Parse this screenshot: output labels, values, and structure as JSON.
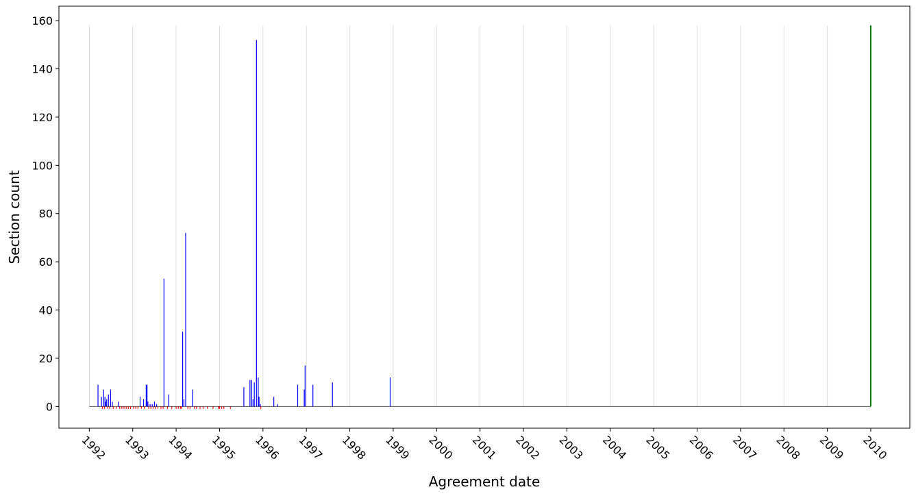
{
  "chart_data": {
    "type": "bar",
    "title": "",
    "xlabel": "Agreement date",
    "ylabel": "Section count",
    "ylim": [
      -9,
      166
    ],
    "yticks": [
      0,
      20,
      40,
      60,
      80,
      100,
      120,
      140,
      160
    ],
    "xlim": [
      1991.3,
      2010.9
    ],
    "xticks": [
      1992,
      1993,
      1994,
      1995,
      1996,
      1997,
      1998,
      1999,
      2000,
      2001,
      2002,
      2003,
      2004,
      2005,
      2006,
      2007,
      2008,
      2009,
      2010
    ],
    "xtick_labels": [
      "1992",
      "1993",
      "1994",
      "1995",
      "1996",
      "1997",
      "1998",
      "1999",
      "2000",
      "2001",
      "2002",
      "2003",
      "2004",
      "2005",
      "2006",
      "2007",
      "2008",
      "2009",
      "2010"
    ],
    "grid": "vertical",
    "baseline": [
      1992.0,
      2010.0
    ],
    "series": [
      {
        "color": "#0000ff",
        "x": [
          1992.2,
          1992.28,
          1992.33,
          1992.36,
          1992.38,
          1992.4,
          1992.44,
          1992.49,
          1992.53,
          1992.67,
          1993.17,
          1993.25,
          1993.31,
          1993.33,
          1993.35,
          1993.4,
          1993.45,
          1993.5,
          1993.55,
          1993.72,
          1993.83,
          1994.15,
          1994.18,
          1994.22,
          1994.38,
          1995.56,
          1995.7,
          1995.74,
          1995.77,
          1995.8,
          1995.85,
          1995.89,
          1995.91,
          1995.94,
          1996.25,
          1996.33,
          1996.8,
          1996.95,
          1996.97,
          1997.15,
          1997.6,
          1998.93
        ],
        "values": [
          9,
          4,
          7,
          4,
          2,
          3,
          5,
          7,
          2,
          2,
          4,
          3,
          9,
          9,
          2,
          1,
          1,
          2,
          1,
          53,
          5,
          31,
          3,
          72,
          7,
          8,
          11,
          11,
          3,
          10,
          152,
          12,
          4,
          1,
          4,
          1,
          9,
          7,
          17,
          9,
          10,
          12
        ]
      },
      {
        "color": "#ff0000",
        "x": [
          1992.3,
          1992.35,
          1992.42,
          1992.47,
          1992.55,
          1992.62,
          1992.7,
          1992.75,
          1992.8,
          1992.85,
          1992.9,
          1992.95,
          1993.02,
          1993.07,
          1993.12,
          1993.2,
          1993.27,
          1993.37,
          1993.42,
          1993.47,
          1993.52,
          1993.58,
          1993.65,
          1993.7,
          1993.8,
          1993.9,
          1994.0,
          1994.05,
          1994.1,
          1994.12,
          1994.27,
          1994.32,
          1994.42,
          1994.47,
          1994.55,
          1994.62,
          1994.72,
          1994.85,
          1994.97,
          1995.0,
          1995.05,
          1995.1,
          1995.25,
          1995.95
        ],
        "values": [
          -1,
          -1,
          -1,
          -1,
          -1,
          -1,
          -1,
          -1,
          -1,
          -1,
          -1,
          -1,
          -1,
          -1,
          -1,
          -1,
          -1,
          -1,
          -1,
          -1,
          -1,
          -1,
          -1,
          -1,
          -1,
          -1,
          -1,
          -1,
          -1,
          -1,
          -1,
          -1,
          -1,
          -1,
          -1,
          -1,
          -1,
          -1,
          -1,
          -1,
          -1,
          -1,
          -1,
          -1
        ]
      },
      {
        "color": "#008000",
        "x": [
          2010.0
        ],
        "values": [
          158
        ]
      }
    ]
  }
}
